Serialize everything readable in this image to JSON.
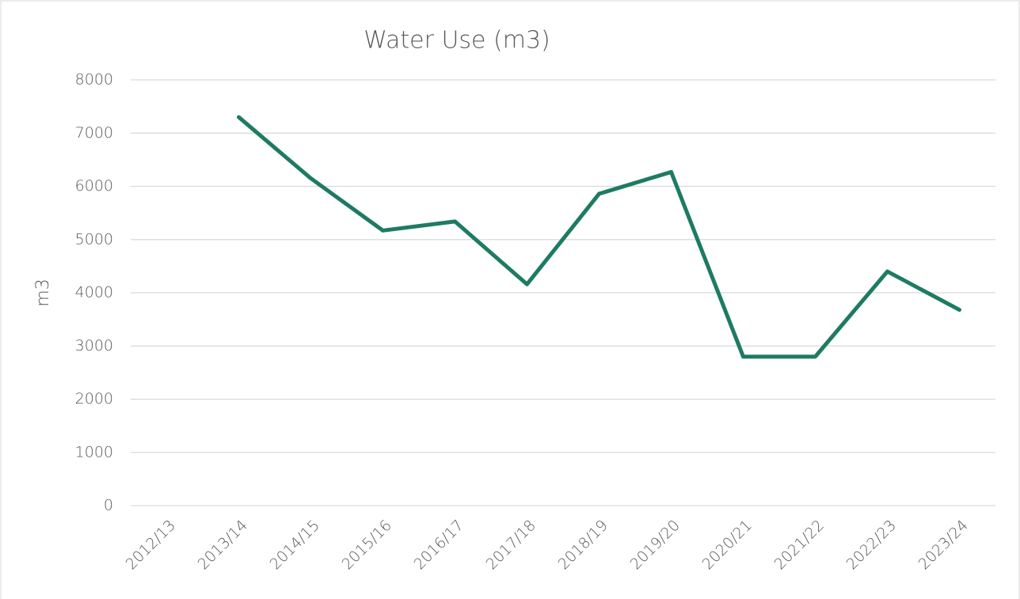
{
  "chart_data": {
    "type": "line",
    "title": "Water Use (m3)",
    "y_label": "m3",
    "categories": [
      "2012/13",
      "2013/14",
      "2014/15",
      "2015/16",
      "2016/17",
      "2017/18",
      "2018/19",
      "2019/20",
      "2020/21",
      "2021/22",
      "2022/23",
      "2023/24"
    ],
    "series": [
      {
        "name": "Water Use",
        "color": "#1e7b63",
        "values": [
          null,
          7300,
          6150,
          5170,
          5340,
          4160,
          5860,
          6270,
          2800,
          2800,
          4400,
          3680
        ]
      }
    ],
    "ylim": [
      0,
      8000
    ],
    "yticks": [
      0,
      1000,
      2000,
      3000,
      4000,
      5000,
      6000,
      7000,
      8000
    ],
    "grid": true
  }
}
